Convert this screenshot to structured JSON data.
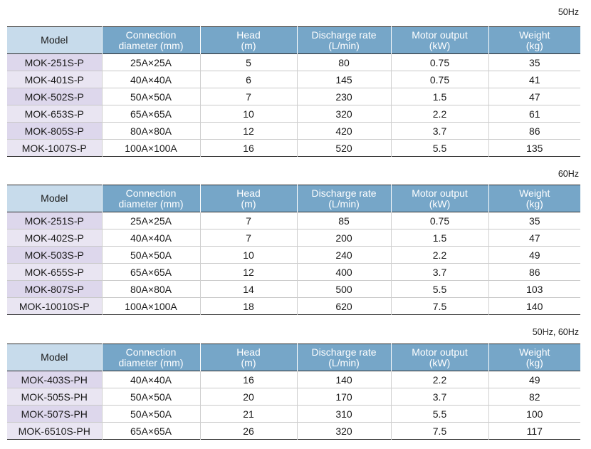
{
  "headers": {
    "model": "Model",
    "connection": [
      "Connection",
      "diameter (mm)"
    ],
    "head": [
      "Head",
      "(m)"
    ],
    "discharge": [
      "Discharge rate",
      "(L/min)"
    ],
    "motor": [
      "Motor output",
      "(kW)"
    ],
    "weight": [
      "Weight",
      "(kg)"
    ]
  },
  "tables": [
    {
      "frequency": "50Hz",
      "rows": [
        [
          "MOK-251S-P",
          "25A×25A",
          "5",
          "80",
          "0.75",
          "35"
        ],
        [
          "MOK-401S-P",
          "40A×40A",
          "6",
          "145",
          "0.75",
          "41"
        ],
        [
          "MOK-502S-P",
          "50A×50A",
          "7",
          "230",
          "1.5",
          "47"
        ],
        [
          "MOK-653S-P",
          "65A×65A",
          "10",
          "320",
          "2.2",
          "61"
        ],
        [
          "MOK-805S-P",
          "80A×80A",
          "12",
          "420",
          "3.7",
          "86"
        ],
        [
          "MOK-1007S-P",
          "100A×100A",
          "16",
          "520",
          "5.5",
          "135"
        ]
      ]
    },
    {
      "frequency": "60Hz",
      "rows": [
        [
          "MOK-251S-P",
          "25A×25A",
          "7",
          "85",
          "0.75",
          "35"
        ],
        [
          "MOK-402S-P",
          "40A×40A",
          "7",
          "200",
          "1.5",
          "47"
        ],
        [
          "MOK-503S-P",
          "50A×50A",
          "10",
          "240",
          "2.2",
          "49"
        ],
        [
          "MOK-655S-P",
          "65A×65A",
          "12",
          "400",
          "3.7",
          "86"
        ],
        [
          "MOK-807S-P",
          "80A×80A",
          "14",
          "500",
          "5.5",
          "103"
        ],
        [
          "MOK-10010S-P",
          "100A×100A",
          "18",
          "620",
          "7.5",
          "140"
        ]
      ]
    },
    {
      "frequency": "50Hz, 60Hz",
      "rows": [
        [
          "MOK-403S-PH",
          "40A×40A",
          "16",
          "140",
          "2.2",
          "49"
        ],
        [
          "MOK-505S-PH",
          "50A×50A",
          "20",
          "170",
          "3.7",
          "82"
        ],
        [
          "MOK-507S-PH",
          "50A×50A",
          "21",
          "310",
          "5.5",
          "100"
        ],
        [
          "MOK-6510S-PH",
          "65A×65A",
          "26",
          "320",
          "7.5",
          "117"
        ]
      ]
    }
  ]
}
